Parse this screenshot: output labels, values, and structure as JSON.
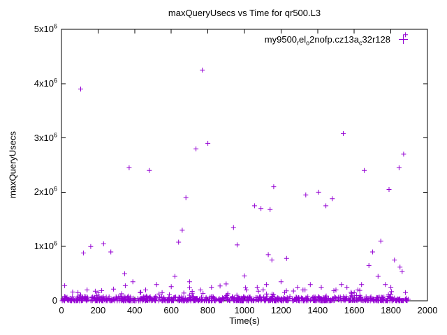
{
  "chart_data": {
    "type": "scatter",
    "title": "maxQueryUsecs vs Time for qr500.L3",
    "xlabel": "Time(s)",
    "ylabel": "maxQueryUsecs",
    "xlim": [
      0,
      2000
    ],
    "ylim": [
      0,
      5000000
    ],
    "grid": false,
    "x_ticks": [
      0,
      200,
      400,
      600,
      800,
      1000,
      1200,
      1400,
      1600,
      1800,
      2000
    ],
    "y_ticks": [
      {
        "value": 0,
        "label": "0"
      },
      {
        "value": 1000000,
        "mantissa": "1x10",
        "exponent": "6"
      },
      {
        "value": 2000000,
        "mantissa": "2x10",
        "exponent": "6"
      },
      {
        "value": 3000000,
        "mantissa": "3x10",
        "exponent": "6"
      },
      {
        "value": 4000000,
        "mantissa": "4x10",
        "exponent": "6"
      },
      {
        "value": 5000000,
        "mantissa": "5x10",
        "exponent": "6"
      }
    ],
    "legend": {
      "position": "top-right",
      "series_label_plain": "my9500_rel_o2nofp.cz13a_c32r128",
      "series_label_segments": [
        {
          "text": "my9500"
        },
        {
          "sub": "r"
        },
        {
          "text": "el"
        },
        {
          "sub": "o"
        },
        {
          "text": "2nofp.cz13a"
        },
        {
          "sub": "c"
        },
        {
          "text": "32r128"
        }
      ]
    },
    "marker": "plus",
    "marker_color": "#9400d3",
    "outliers": [
      [
        1880,
        4900000
      ],
      [
        770,
        4250000
      ],
      [
        105,
        3900000
      ],
      [
        1540,
        3080000
      ],
      [
        800,
        2900000
      ],
      [
        735,
        2800000
      ],
      [
        1870,
        2700000
      ],
      [
        370,
        2450000
      ],
      [
        1845,
        2450000
      ],
      [
        480,
        2400000
      ],
      [
        1655,
        2400000
      ],
      [
        1160,
        2100000
      ],
      [
        1790,
        2050000
      ],
      [
        1405,
        2000000
      ],
      [
        1335,
        1950000
      ],
      [
        680,
        1900000
      ],
      [
        1480,
        1880000
      ],
      [
        1055,
        1750000
      ],
      [
        1445,
        1750000
      ],
      [
        1090,
        1700000
      ],
      [
        1140,
        1680000
      ],
      [
        940,
        1350000
      ],
      [
        660,
        1300000
      ],
      [
        1745,
        1100000
      ],
      [
        640,
        1080000
      ],
      [
        230,
        1050000
      ],
      [
        960,
        1030000
      ],
      [
        160,
        1000000
      ],
      [
        270,
        900000
      ],
      [
        1700,
        900000
      ],
      [
        120,
        880000
      ],
      [
        1130,
        850000
      ],
      [
        1230,
        780000
      ],
      [
        1150,
        750000
      ],
      [
        1820,
        750000
      ],
      [
        1680,
        650000
      ],
      [
        1850,
        620000
      ],
      [
        1862,
        540000
      ],
      [
        345,
        500000
      ],
      [
        1000,
        460000
      ],
      [
        620,
        450000
      ],
      [
        1730,
        450000
      ],
      [
        390,
        350000
      ],
      [
        700,
        350000
      ],
      [
        1200,
        350000
      ],
      [
        900,
        310000
      ],
      [
        520,
        300000
      ],
      [
        1120,
        300000
      ],
      [
        1360,
        300000
      ],
      [
        1530,
        300000
      ],
      [
        1640,
        300000
      ],
      [
        1770,
        300000
      ],
      [
        600,
        260000
      ],
      [
        820,
        250000
      ],
      [
        1070,
        250000
      ],
      [
        1290,
        250000
      ],
      [
        1420,
        250000
      ],
      [
        1560,
        250000
      ],
      [
        1800,
        250000
      ],
      [
        140,
        200000
      ],
      [
        460,
        200000
      ],
      [
        760,
        200000
      ],
      [
        1010,
        200000
      ],
      [
        1320,
        200000
      ],
      [
        1500,
        200000
      ],
      [
        1620,
        200000
      ],
      [
        90,
        150000
      ],
      [
        200,
        150000
      ],
      [
        430,
        150000
      ],
      [
        550,
        150000
      ],
      [
        1600,
        150000
      ],
      [
        1880,
        150000
      ]
    ],
    "baseline_band": {
      "seed": 7,
      "x_min": 3,
      "x_max": 1897,
      "count": 700,
      "y_max": 80000,
      "extra_count": 150,
      "extra_y_max": 280000
    }
  }
}
